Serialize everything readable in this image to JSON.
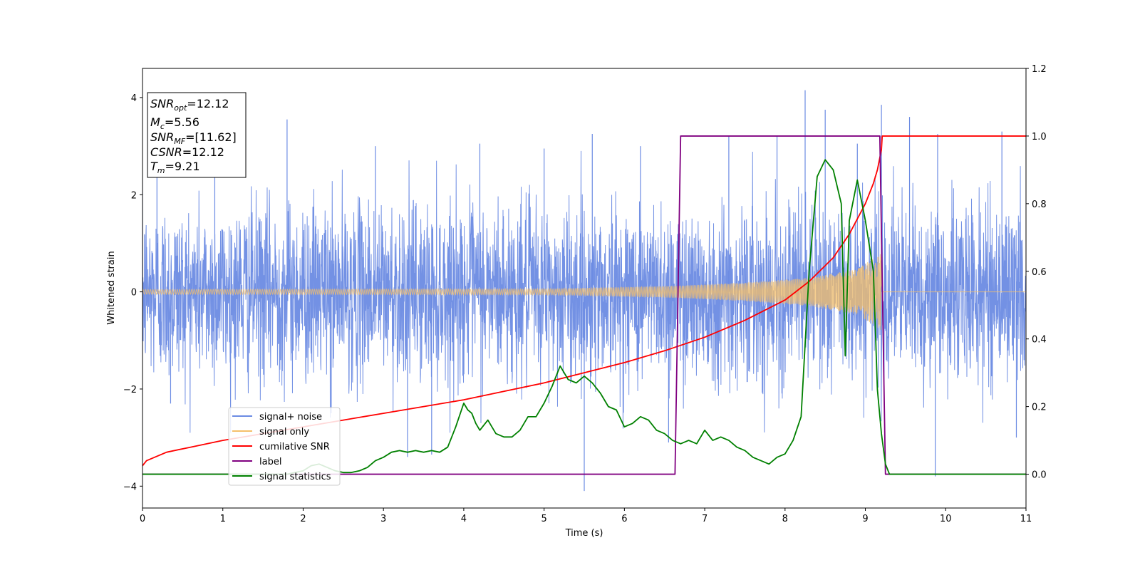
{
  "chart_data": {
    "type": "line",
    "xlabel": "Time (s)",
    "ylabel": "Whitened strain",
    "xlim": [
      0,
      11
    ],
    "ylim_left": [
      -4.45,
      4.6
    ],
    "ylim_right": [
      -0.1,
      1.2
    ],
    "x_ticks": [
      "0",
      "1",
      "2",
      "3",
      "4",
      "5",
      "6",
      "7",
      "8",
      "9",
      "10",
      "11"
    ],
    "y_ticks_left": [
      "−4",
      "−2",
      "0",
      "2",
      "4"
    ],
    "y_ticks_right": [
      "0.0",
      "0.2",
      "0.4",
      "0.6",
      "0.8",
      "1.0",
      "1.2"
    ],
    "grid": false,
    "legend_position": "lower-left",
    "annotation_box": [
      "SNRopt=12.12",
      "Mc=5.56",
      "SNRMF=[11.62]",
      "CSNR=12.12",
      "Tm=9.21"
    ],
    "colors": {
      "signal_noise": "#6b8be3",
      "signal_only": "#f5c06a",
      "cumulative_snr": "#ff0000",
      "label": "#800080",
      "signal_statistics": "#008000"
    },
    "series": [
      {
        "name": "signal+ noise",
        "axis": "left",
        "noise_sigma": 0.9,
        "spikes": [
          [
            0.18,
            2.9
          ],
          [
            0.35,
            -2.3
          ],
          [
            0.9,
            3.1
          ],
          [
            1.8,
            3.55
          ],
          [
            2.35,
            -2.5
          ],
          [
            2.9,
            3.0
          ],
          [
            3.3,
            -3.4
          ],
          [
            3.6,
            -3.35
          ],
          [
            4.2,
            3.05
          ],
          [
            5.0,
            2.95
          ],
          [
            5.5,
            -4.1
          ],
          [
            5.6,
            3.25
          ],
          [
            6.2,
            3.0
          ],
          [
            6.55,
            -3.1
          ],
          [
            7.3,
            3.2
          ],
          [
            7.9,
            3.2
          ],
          [
            8.25,
            4.15
          ],
          [
            8.5,
            3.75
          ],
          [
            8.9,
            3.05
          ],
          [
            9.2,
            3.85
          ],
          [
            9.55,
            3.6
          ],
          [
            9.87,
            -3.8
          ],
          [
            9.9,
            3.25
          ],
          [
            10.7,
            3.3
          ],
          [
            10.88,
            -3.0
          ]
        ]
      },
      {
        "name": "signal only",
        "axis": "left",
        "amplitude": [
          [
            0,
            0.05
          ],
          [
            5,
            0.06
          ],
          [
            6.6,
            0.12
          ],
          [
            7.5,
            0.19
          ],
          [
            8.3,
            0.29
          ],
          [
            8.9,
            0.47
          ],
          [
            9.2,
            0.8
          ],
          [
            9.22,
            0.0
          ],
          [
            11,
            0.0
          ]
        ]
      },
      {
        "name": "cumilative SNR",
        "axis": "right",
        "x": [
          0,
          0.05,
          0.3,
          0.6,
          1.0,
          1.5,
          2.0,
          2.5,
          3.0,
          3.5,
          4.0,
          4.5,
          5.0,
          5.5,
          6.0,
          6.5,
          7.0,
          7.5,
          8.0,
          8.3,
          8.6,
          8.8,
          9.0,
          9.1,
          9.15,
          9.2,
          9.21,
          9.3,
          10.0,
          11.0
        ],
        "values": [
          0.025,
          0.04,
          0.065,
          0.08,
          0.1,
          0.12,
          0.14,
          0.16,
          0.18,
          0.2,
          0.22,
          0.245,
          0.27,
          0.3,
          0.33,
          0.365,
          0.405,
          0.455,
          0.515,
          0.57,
          0.64,
          0.71,
          0.8,
          0.86,
          0.9,
          0.96,
          1.0,
          1.0,
          1.0,
          1.0
        ]
      },
      {
        "name": "label",
        "axis": "right",
        "x": [
          0,
          6.63,
          6.7,
          9.18,
          9.25,
          11
        ],
        "values": [
          0,
          0,
          1,
          1,
          0,
          0
        ]
      },
      {
        "name": "signal statistics",
        "axis": "right",
        "x": [
          0,
          1.0,
          1.5,
          1.8,
          2.0,
          2.1,
          2.2,
          2.3,
          2.4,
          2.5,
          2.6,
          2.7,
          2.8,
          2.9,
          3.0,
          3.1,
          3.2,
          3.3,
          3.4,
          3.5,
          3.6,
          3.7,
          3.8,
          3.9,
          4.0,
          4.05,
          4.1,
          4.15,
          4.2,
          4.3,
          4.4,
          4.5,
          4.6,
          4.7,
          4.8,
          4.9,
          5.0,
          5.1,
          5.2,
          5.3,
          5.4,
          5.5,
          5.6,
          5.7,
          5.8,
          5.9,
          6.0,
          6.1,
          6.2,
          6.3,
          6.4,
          6.5,
          6.6,
          6.7,
          6.8,
          6.9,
          7.0,
          7.1,
          7.2,
          7.3,
          7.4,
          7.5,
          7.6,
          7.7,
          7.8,
          7.9,
          8.0,
          8.1,
          8.2,
          8.3,
          8.4,
          8.5,
          8.6,
          8.7,
          8.75,
          8.8,
          8.9,
          9.0,
          9.1,
          9.15,
          9.2,
          9.25,
          9.3,
          9.4,
          9.5,
          11.0
        ],
        "values": [
          0.0,
          0.0,
          0.0,
          0.0,
          0.01,
          0.025,
          0.03,
          0.02,
          0.01,
          0.005,
          0.005,
          0.01,
          0.02,
          0.04,
          0.05,
          0.065,
          0.07,
          0.065,
          0.07,
          0.065,
          0.07,
          0.065,
          0.08,
          0.14,
          0.21,
          0.19,
          0.18,
          0.15,
          0.13,
          0.16,
          0.12,
          0.11,
          0.11,
          0.13,
          0.17,
          0.17,
          0.21,
          0.26,
          0.32,
          0.28,
          0.27,
          0.29,
          0.27,
          0.24,
          0.2,
          0.19,
          0.14,
          0.15,
          0.17,
          0.16,
          0.13,
          0.12,
          0.1,
          0.09,
          0.1,
          0.09,
          0.13,
          0.1,
          0.11,
          0.1,
          0.08,
          0.07,
          0.05,
          0.04,
          0.03,
          0.05,
          0.06,
          0.1,
          0.17,
          0.6,
          0.88,
          0.93,
          0.9,
          0.8,
          0.35,
          0.75,
          0.87,
          0.75,
          0.6,
          0.25,
          0.12,
          0.03,
          0.0,
          0.0,
          0.0,
          0.0
        ]
      }
    ]
  }
}
